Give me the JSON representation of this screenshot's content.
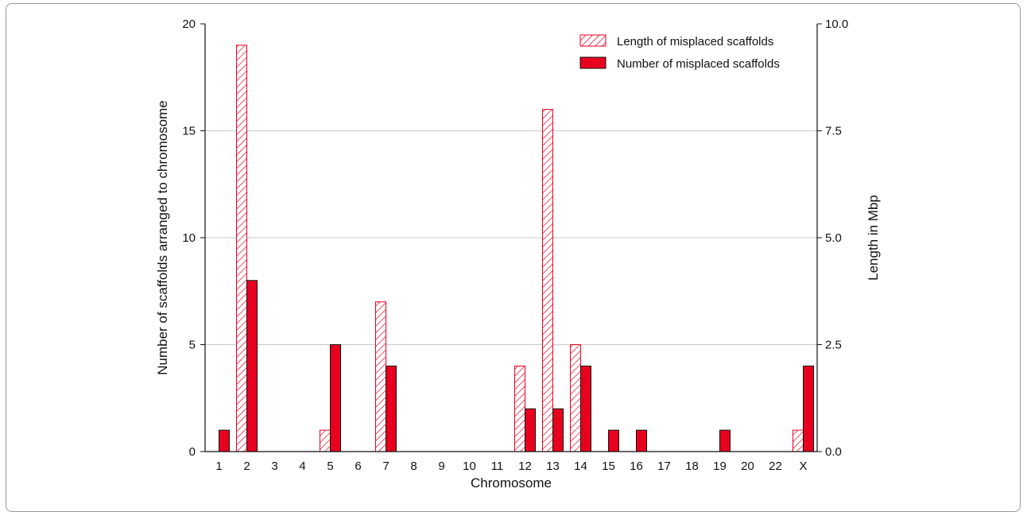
{
  "chart_data": {
    "type": "bar",
    "categories": [
      "1",
      "2",
      "3",
      "4",
      "5",
      "6",
      "7",
      "8",
      "9",
      "10",
      "11",
      "12",
      "13",
      "14",
      "15",
      "16",
      "17",
      "18",
      "19",
      "20",
      "22",
      "X"
    ],
    "series": [
      {
        "name": "Length of misplaced scaffolds",
        "axis": "right",
        "pattern": "hatched",
        "values": [
          0,
          9.5,
          0,
          0,
          0.5,
          0,
          3.5,
          0,
          0,
          0,
          0,
          2.0,
          8.0,
          2.5,
          0,
          0,
          0,
          0,
          0,
          0,
          0,
          0.5
        ]
      },
      {
        "name": "Number of misplaced scaffolds",
        "axis": "left",
        "pattern": "solid",
        "values": [
          1,
          8,
          0,
          0,
          5,
          0,
          4,
          0,
          0,
          0,
          0,
          2,
          2,
          4,
          1,
          1,
          0,
          0,
          1,
          0,
          0,
          4
        ]
      }
    ],
    "xlabel": "Chromosome",
    "ylabel_left": "Number of scaffolds arranged to chromosome",
    "ylabel_right": "Length in Mbp",
    "ylim_left": [
      0,
      20
    ],
    "ylim_right": [
      0,
      10
    ],
    "yticks_left": [
      "0",
      "5",
      "10",
      "15",
      "20"
    ],
    "yticks_right": [
      "0.0",
      "2.5",
      "5.0",
      "7.5",
      "10.0"
    ],
    "grid": true,
    "legend_position": "top-right",
    "colors": {
      "bar": "#e8001f",
      "hatch": "#e8001f",
      "grid": "#c8c8c8",
      "axis": "#111111"
    }
  }
}
